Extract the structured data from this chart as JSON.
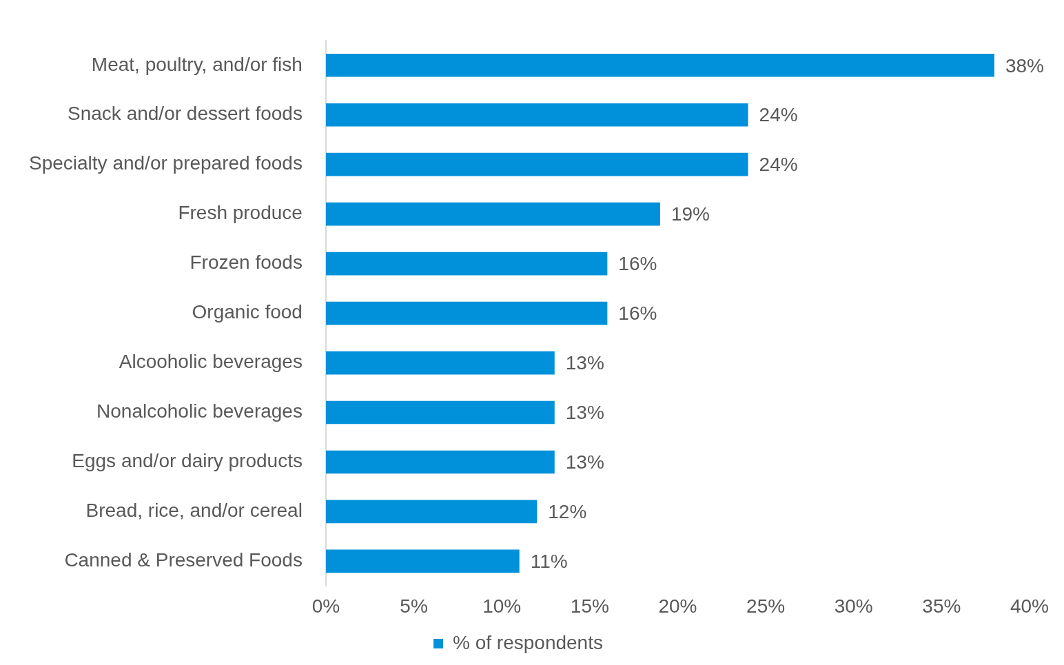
{
  "chart_data": {
    "type": "bar",
    "orientation": "horizontal",
    "categories": [
      "Meat, poultry, and/or fish",
      "Snack and/or dessert foods",
      "Specialty and/or prepared foods",
      "Fresh produce",
      "Frozen foods",
      "Organic food",
      "Alcooholic beverages",
      "Nonalcoholic beverages",
      "Eggs and/or dairy products",
      "Bread, rice, and/or cereal",
      "Canned & Preserved Foods"
    ],
    "series": [
      {
        "name": "% of respondents",
        "color": "#0091da",
        "values": [
          38,
          24,
          24,
          19,
          16,
          16,
          13,
          13,
          13,
          12,
          11
        ],
        "value_labels": [
          "38%",
          "24%",
          "24%",
          "19%",
          "16%",
          "16%",
          "13%",
          "13%",
          "13%",
          "12%",
          "11%"
        ]
      }
    ],
    "xlim": [
      0,
      40
    ],
    "xticks": [
      {
        "value": 0,
        "label": "0%"
      },
      {
        "value": 5,
        "label": "5%"
      },
      {
        "value": 10,
        "label": "10%"
      },
      {
        "value": 15,
        "label": "15%"
      },
      {
        "value": 20,
        "label": "20%"
      },
      {
        "value": 25,
        "label": "25%"
      },
      {
        "value": 30,
        "label": "30%"
      },
      {
        "value": 35,
        "label": "35%"
      },
      {
        "value": 40,
        "label": "40%"
      }
    ],
    "grid": false,
    "legend": "bottom"
  }
}
